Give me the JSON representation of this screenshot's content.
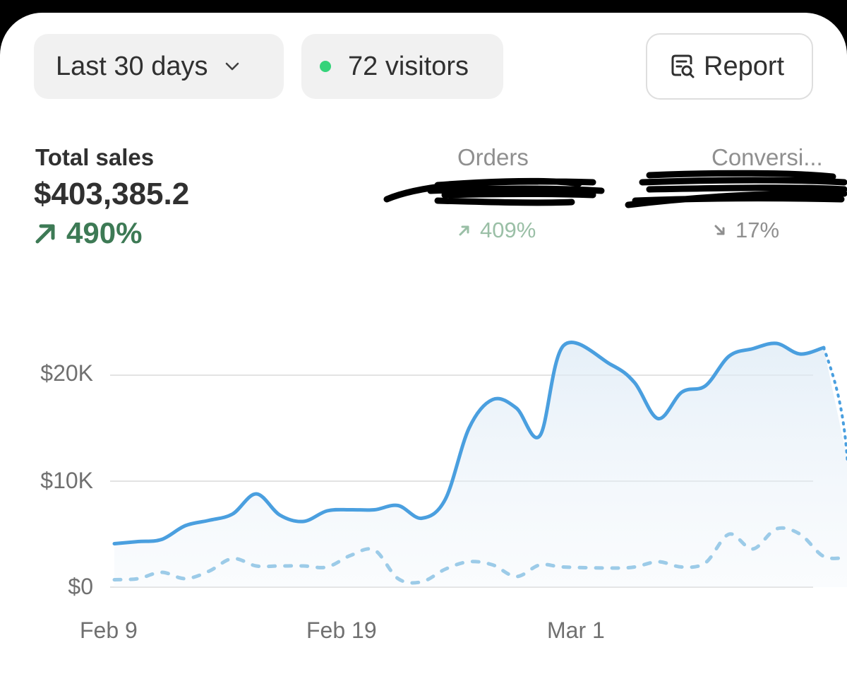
{
  "toolbar": {
    "range_label": "Last 30 days",
    "visitors_label": "72 visitors",
    "report_label": "Report"
  },
  "metrics": {
    "total_sales": {
      "label": "Total sales",
      "value": "$403,385.2",
      "change": "490%",
      "direction": "up"
    },
    "orders": {
      "label": "Orders",
      "change": "409%",
      "direction": "up"
    },
    "conversion": {
      "label": "Conversi...",
      "change": "17%",
      "direction": "down"
    }
  },
  "colors": {
    "accent": "#4a9fdf",
    "comparison": "#9ccbe8",
    "positive": "#3d7a55",
    "positive_muted": "#9abfa6",
    "negative_muted": "#8f8f8f",
    "live_dot": "#35d37a"
  },
  "icons": {
    "range_chevron": "chevron-down-icon",
    "visitors_dot": "live-dot-icon",
    "report": "report-icon",
    "up": "arrow-up-right-icon",
    "down": "arrow-down-right-icon"
  },
  "chart_data": {
    "type": "line",
    "x_tick_labels": [
      "Feb 9",
      "Feb 19",
      "Mar 1"
    ],
    "y_tick_labels": [
      "$0",
      "$10K",
      "$20K"
    ],
    "ylim": [
      0,
      24000
    ],
    "grid": true,
    "legend": "none",
    "series": [
      {
        "style": "solid",
        "x": [
          "Feb 9",
          "Feb 10",
          "Feb 11",
          "Feb 12",
          "Feb 13",
          "Feb 14",
          "Feb 15",
          "Feb 16",
          "Feb 17",
          "Feb 18",
          "Feb 19",
          "Feb 20",
          "Feb 21",
          "Feb 22",
          "Feb 23",
          "Feb 24",
          "Feb 25",
          "Feb 26",
          "Feb 27",
          "Feb 28",
          "Mar 1",
          "Mar 2",
          "Mar 3",
          "Mar 4",
          "Mar 5",
          "Mar 6",
          "Mar 7",
          "Mar 8",
          "Mar 9",
          "Mar 10"
        ],
        "values": [
          4100,
          4300,
          4500,
          5800,
          6300,
          6900,
          8800,
          6800,
          6200,
          7200,
          7300,
          7300,
          7700,
          6500,
          8300,
          15000,
          17700,
          16900,
          14300,
          22800,
          21000,
          19300,
          15900,
          18400,
          19000,
          21800,
          22500,
          23000,
          22000,
          22600
        ]
      },
      {
        "style": "dotted",
        "x": [
          "Mar 10",
          "Mar 11"
        ],
        "values": [
          22600,
          12000
        ]
      },
      {
        "style": "dashed",
        "x": [
          "Feb 9",
          "Feb 10",
          "Feb 11",
          "Feb 12",
          "Feb 13",
          "Feb 14",
          "Feb 15",
          "Feb 16",
          "Feb 17",
          "Feb 18",
          "Feb 19",
          "Feb 20",
          "Feb 21",
          "Feb 22",
          "Feb 23",
          "Feb 24",
          "Feb 25",
          "Feb 26",
          "Feb 27",
          "Feb 28",
          "Mar 1",
          "Mar 2",
          "Mar 3",
          "Mar 4",
          "Mar 5",
          "Mar 6",
          "Mar 7",
          "Mar 8",
          "Mar 9",
          "Mar 10",
          "Mar 11"
        ],
        "values": [
          700,
          800,
          1400,
          800,
          1500,
          2700,
          2000,
          2000,
          2000,
          1900,
          3000,
          3500,
          800,
          500,
          1700,
          2400,
          2100,
          1000,
          2100,
          1900,
          1800,
          1900,
          2400,
          1900,
          2300,
          5000,
          3600,
          5500,
          5000,
          2900,
          2800
        ]
      }
    ]
  }
}
